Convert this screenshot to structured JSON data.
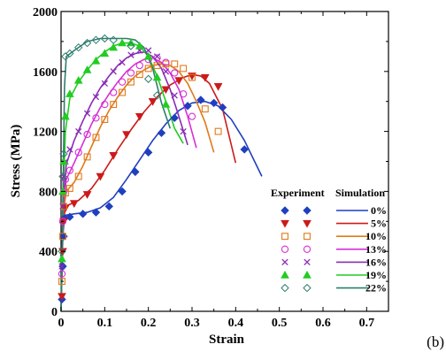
{
  "panel_label": "(b)",
  "chart_data": {
    "type": "line",
    "xlabel": "Strain",
    "ylabel": "Stress (MPa)",
    "xlim": [
      0,
      0.75
    ],
    "ylim": [
      0,
      2000
    ],
    "x_ticks": [
      0,
      0.1,
      0.2,
      0.3,
      0.4,
      0.5,
      0.6,
      0.7
    ],
    "x_tick_labels": [
      "0",
      "0.1",
      "0.2",
      "0.3",
      "0.4",
      "0.5",
      "0.6",
      "0.7"
    ],
    "y_ticks": [
      0,
      400,
      800,
      1200,
      1600,
      2000
    ],
    "y_tick_labels": [
      "0",
      "400",
      "800",
      "1200",
      "1600",
      "2000"
    ],
    "grid": false,
    "legend": {
      "placement": "bottom-right",
      "experiment_header": "Experiment",
      "simulation_header": "Simulation"
    },
    "series": [
      {
        "name": "0%",
        "color": "#1f3fbf",
        "marker": "diamond-filled",
        "experiment": [
          [
            0.002,
            80
          ],
          [
            0.004,
            300
          ],
          [
            0.006,
            500
          ],
          [
            0.008,
            620
          ],
          [
            0.02,
            630
          ],
          [
            0.05,
            650
          ],
          [
            0.08,
            660
          ],
          [
            0.11,
            700
          ],
          [
            0.14,
            800
          ],
          [
            0.17,
            930
          ],
          [
            0.2,
            1060
          ],
          [
            0.23,
            1190
          ],
          [
            0.26,
            1290
          ],
          [
            0.29,
            1370
          ],
          [
            0.32,
            1410
          ],
          [
            0.35,
            1390
          ],
          [
            0.37,
            1360
          ],
          [
            0.42,
            1080
          ]
        ],
        "simulation": [
          [
            0,
            0
          ],
          [
            0.004,
            500
          ],
          [
            0.008,
            640
          ],
          [
            0.03,
            650
          ],
          [
            0.06,
            660
          ],
          [
            0.09,
            690
          ],
          [
            0.12,
            760
          ],
          [
            0.15,
            880
          ],
          [
            0.18,
            1010
          ],
          [
            0.21,
            1140
          ],
          [
            0.24,
            1250
          ],
          [
            0.27,
            1340
          ],
          [
            0.3,
            1390
          ],
          [
            0.33,
            1400
          ],
          [
            0.36,
            1370
          ],
          [
            0.39,
            1280
          ],
          [
            0.42,
            1140
          ],
          [
            0.46,
            900
          ]
        ]
      },
      {
        "name": "5%",
        "color": "#cc1a1a",
        "marker": "triangle-down-filled",
        "experiment": [
          [
            0.002,
            100
          ],
          [
            0.004,
            400
          ],
          [
            0.006,
            600
          ],
          [
            0.01,
            690
          ],
          [
            0.03,
            720
          ],
          [
            0.06,
            780
          ],
          [
            0.09,
            900
          ],
          [
            0.12,
            1040
          ],
          [
            0.15,
            1180
          ],
          [
            0.18,
            1300
          ],
          [
            0.21,
            1400
          ],
          [
            0.24,
            1480
          ],
          [
            0.27,
            1540
          ],
          [
            0.3,
            1570
          ],
          [
            0.33,
            1560
          ],
          [
            0.36,
            1500
          ]
        ],
        "simulation": [
          [
            0,
            0
          ],
          [
            0.004,
            550
          ],
          [
            0.01,
            700
          ],
          [
            0.04,
            740
          ],
          [
            0.07,
            820
          ],
          [
            0.1,
            940
          ],
          [
            0.13,
            1080
          ],
          [
            0.16,
            1210
          ],
          [
            0.19,
            1330
          ],
          [
            0.22,
            1430
          ],
          [
            0.25,
            1510
          ],
          [
            0.28,
            1560
          ],
          [
            0.3,
            1580
          ],
          [
            0.32,
            1570
          ],
          [
            0.34,
            1520
          ],
          [
            0.37,
            1350
          ],
          [
            0.4,
            990
          ]
        ]
      },
      {
        "name": "10%",
        "color": "#e07a1a",
        "marker": "square-open",
        "experiment": [
          [
            0.002,
            200
          ],
          [
            0.004,
            500
          ],
          [
            0.006,
            700
          ],
          [
            0.01,
            790
          ],
          [
            0.02,
            820
          ],
          [
            0.04,
            900
          ],
          [
            0.06,
            1030
          ],
          [
            0.08,
            1160
          ],
          [
            0.1,
            1280
          ],
          [
            0.12,
            1380
          ],
          [
            0.14,
            1460
          ],
          [
            0.16,
            1530
          ],
          [
            0.18,
            1580
          ],
          [
            0.2,
            1620
          ],
          [
            0.22,
            1640
          ],
          [
            0.24,
            1650
          ],
          [
            0.26,
            1650
          ],
          [
            0.28,
            1620
          ],
          [
            0.3,
            1560
          ],
          [
            0.33,
            1350
          ],
          [
            0.36,
            1200
          ]
        ],
        "simulation": [
          [
            0,
            0
          ],
          [
            0.005,
            650
          ],
          [
            0.012,
            800
          ],
          [
            0.03,
            860
          ],
          [
            0.05,
            970
          ],
          [
            0.07,
            1100
          ],
          [
            0.09,
            1230
          ],
          [
            0.11,
            1340
          ],
          [
            0.13,
            1430
          ],
          [
            0.15,
            1510
          ],
          [
            0.17,
            1570
          ],
          [
            0.19,
            1610
          ],
          [
            0.21,
            1640
          ],
          [
            0.23,
            1650
          ],
          [
            0.25,
            1640
          ],
          [
            0.27,
            1600
          ],
          [
            0.29,
            1520
          ],
          [
            0.31,
            1400
          ],
          [
            0.33,
            1260
          ],
          [
            0.35,
            1060
          ]
        ]
      },
      {
        "name": "13%",
        "color": "#d62fd6",
        "marker": "circle-open",
        "experiment": [
          [
            0.002,
            250
          ],
          [
            0.004,
            600
          ],
          [
            0.006,
            800
          ],
          [
            0.01,
            880
          ],
          [
            0.02,
            940
          ],
          [
            0.04,
            1060
          ],
          [
            0.06,
            1180
          ],
          [
            0.08,
            1290
          ],
          [
            0.1,
            1380
          ],
          [
            0.12,
            1460
          ],
          [
            0.14,
            1530
          ],
          [
            0.16,
            1590
          ],
          [
            0.18,
            1640
          ],
          [
            0.2,
            1680
          ],
          [
            0.22,
            1690
          ],
          [
            0.24,
            1660
          ],
          [
            0.26,
            1590
          ],
          [
            0.28,
            1450
          ],
          [
            0.3,
            1300
          ]
        ],
        "simulation": [
          [
            0,
            0
          ],
          [
            0.005,
            700
          ],
          [
            0.012,
            880
          ],
          [
            0.03,
            990
          ],
          [
            0.05,
            1120
          ],
          [
            0.07,
            1250
          ],
          [
            0.09,
            1360
          ],
          [
            0.11,
            1450
          ],
          [
            0.13,
            1530
          ],
          [
            0.15,
            1600
          ],
          [
            0.17,
            1650
          ],
          [
            0.19,
            1680
          ],
          [
            0.21,
            1690
          ],
          [
            0.23,
            1660
          ],
          [
            0.25,
            1590
          ],
          [
            0.27,
            1480
          ],
          [
            0.29,
            1300
          ],
          [
            0.31,
            1090
          ]
        ]
      },
      {
        "name": "16%",
        "color": "#8a2bb8",
        "marker": "x",
        "experiment": [
          [
            0.002,
            300
          ],
          [
            0.004,
            700
          ],
          [
            0.006,
            900
          ],
          [
            0.01,
            1000
          ],
          [
            0.02,
            1080
          ],
          [
            0.04,
            1200
          ],
          [
            0.06,
            1320
          ],
          [
            0.08,
            1430
          ],
          [
            0.1,
            1520
          ],
          [
            0.12,
            1600
          ],
          [
            0.14,
            1660
          ],
          [
            0.16,
            1710
          ],
          [
            0.18,
            1740
          ],
          [
            0.2,
            1740
          ],
          [
            0.22,
            1700
          ],
          [
            0.24,
            1600
          ],
          [
            0.26,
            1440
          ],
          [
            0.28,
            1200
          ]
        ],
        "simulation": [
          [
            0,
            0
          ],
          [
            0.005,
            750
          ],
          [
            0.012,
            980
          ],
          [
            0.03,
            1140
          ],
          [
            0.05,
            1270
          ],
          [
            0.07,
            1390
          ],
          [
            0.09,
            1490
          ],
          [
            0.11,
            1570
          ],
          [
            0.13,
            1640
          ],
          [
            0.15,
            1690
          ],
          [
            0.17,
            1720
          ],
          [
            0.19,
            1730
          ],
          [
            0.21,
            1700
          ],
          [
            0.23,
            1620
          ],
          [
            0.25,
            1480
          ],
          [
            0.27,
            1300
          ],
          [
            0.29,
            1110
          ]
        ]
      },
      {
        "name": "19%",
        "color": "#22cc22",
        "marker": "triangle-up-filled",
        "experiment": [
          [
            0.002,
            350
          ],
          [
            0.004,
            800
          ],
          [
            0.006,
            1000
          ],
          [
            0.01,
            1300
          ],
          [
            0.02,
            1450
          ],
          [
            0.04,
            1540
          ],
          [
            0.06,
            1610
          ],
          [
            0.08,
            1670
          ],
          [
            0.1,
            1720
          ],
          [
            0.12,
            1760
          ],
          [
            0.14,
            1790
          ],
          [
            0.16,
            1790
          ],
          [
            0.18,
            1770
          ],
          [
            0.2,
            1700
          ],
          [
            0.22,
            1560
          ],
          [
            0.24,
            1380
          ]
        ],
        "simulation": [
          [
            0,
            0
          ],
          [
            0.005,
            800
          ],
          [
            0.01,
            1200
          ],
          [
            0.02,
            1420
          ],
          [
            0.04,
            1530
          ],
          [
            0.06,
            1610
          ],
          [
            0.08,
            1680
          ],
          [
            0.1,
            1730
          ],
          [
            0.12,
            1770
          ],
          [
            0.14,
            1790
          ],
          [
            0.16,
            1790
          ],
          [
            0.18,
            1770
          ],
          [
            0.2,
            1700
          ],
          [
            0.22,
            1570
          ],
          [
            0.24,
            1400
          ],
          [
            0.26,
            1220
          ],
          [
            0.28,
            1120
          ]
        ]
      },
      {
        "name": "22%",
        "color": "#2e7d6e",
        "marker": "diamond-open",
        "experiment": [
          [
            0.002,
            400
          ],
          [
            0.004,
            900
          ],
          [
            0.006,
            1050
          ],
          [
            0.01,
            1700
          ],
          [
            0.02,
            1720
          ],
          [
            0.04,
            1760
          ],
          [
            0.06,
            1790
          ],
          [
            0.08,
            1810
          ],
          [
            0.1,
            1820
          ],
          [
            0.12,
            1810
          ],
          [
            0.16,
            1770
          ],
          [
            0.2,
            1550
          ],
          [
            0.22,
            1440
          ]
        ],
        "simulation": [
          [
            0,
            0
          ],
          [
            0.005,
            900
          ],
          [
            0.008,
            1500
          ],
          [
            0.012,
            1700
          ],
          [
            0.03,
            1740
          ],
          [
            0.06,
            1800
          ],
          [
            0.09,
            1820
          ],
          [
            0.12,
            1820
          ],
          [
            0.15,
            1820
          ],
          [
            0.17,
            1810
          ],
          [
            0.19,
            1760
          ],
          [
            0.21,
            1620
          ],
          [
            0.23,
            1390
          ],
          [
            0.25,
            1220
          ]
        ]
      }
    ]
  }
}
